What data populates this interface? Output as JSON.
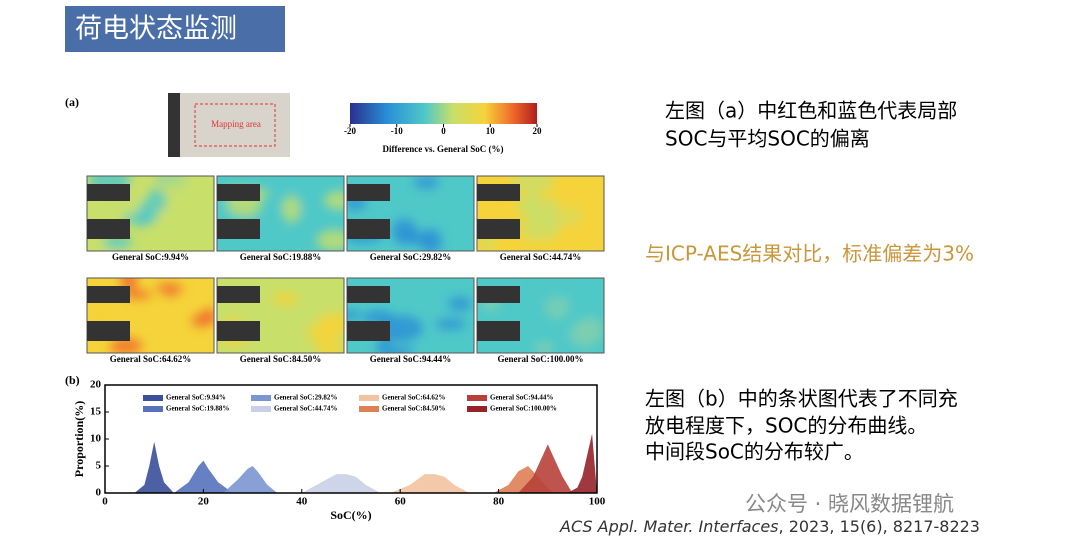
{
  "header": {
    "title": "荷电状态监测"
  },
  "figure": {
    "panel_a": {
      "label": "(a)",
      "photo_label": "Mapping area",
      "colorbar": {
        "ticks": [
          -20,
          -10,
          0,
          10,
          20
        ],
        "label": "Difference vs. General SoC (%)"
      },
      "maps": [
        {
          "label": "General SoC:9.94%"
        },
        {
          "label": "General SoC:19.88%"
        },
        {
          "label": "General SoC:29.82%"
        },
        {
          "label": "General SoC:44.74%"
        },
        {
          "label": "General SoC:64.62%"
        },
        {
          "label": "General SoC:84.50%"
        },
        {
          "label": "General SoC:94.44%"
        },
        {
          "label": "General SoC:100.00%"
        }
      ]
    },
    "panel_b": {
      "label": "(b)",
      "chart_data": {
        "type": "area",
        "x_label": "SoC(%)",
        "y_label": "Proportion(%)",
        "xlim": [
          0,
          100
        ],
        "ylim": [
          0,
          20
        ],
        "xticks": [
          0,
          20,
          40,
          60,
          80,
          100
        ],
        "yticks": [
          0,
          5,
          10,
          15,
          20
        ],
        "series": [
          {
            "name": "General SoC:9.94%",
            "color": "#3b4f9a",
            "x": [
              6,
              8,
              9,
              10,
              11,
              12,
              14
            ],
            "values": [
              0,
              1.5,
              5,
              9.5,
              5,
              2,
              0
            ]
          },
          {
            "name": "General SoC:19.88%",
            "color": "#5672bd",
            "x": [
              14,
              17,
              19,
              20,
              21,
              23,
              26
            ],
            "values": [
              0,
              2,
              5,
              6,
              4.5,
              2,
              0
            ]
          },
          {
            "name": "General SoC:29.82%",
            "color": "#7b96d1",
            "x": [
              24,
              27,
              29,
              30,
              31,
              33,
              35
            ],
            "values": [
              0,
              2.5,
              4.5,
              5,
              4,
              1.5,
              0
            ]
          },
          {
            "name": "General SoC:44.74%",
            "color": "#c9d0e6",
            "x": [
              40,
              44,
              47,
              49,
              51,
              53,
              56
            ],
            "values": [
              0,
              2,
              3.5,
              3.5,
              3,
              1.5,
              0
            ]
          },
          {
            "name": "General SoC:64.62%",
            "color": "#f2c3a0",
            "x": [
              58,
              62,
              65,
              67,
              69,
              71,
              74
            ],
            "values": [
              0,
              1.5,
              3.5,
              3.5,
              3,
              1.5,
              0
            ]
          },
          {
            "name": "General SoC:84.50%",
            "color": "#de8055",
            "x": [
              79,
              82,
              84,
              86,
              87,
              89,
              91
            ],
            "values": [
              0,
              1.5,
              4,
              5,
              4,
              2,
              0
            ]
          },
          {
            "name": "General SoC:94.44%",
            "color": "#b7413a",
            "x": [
              84,
              87,
              89,
              90,
              91,
              93,
              95
            ],
            "values": [
              0,
              3,
              7,
              9,
              7,
              3,
              0
            ]
          },
          {
            "name": "General SoC:100.00%",
            "color": "#96232a",
            "x": [
              94,
              96,
              97,
              98,
              99,
              100
            ],
            "values": [
              0,
              1,
              3,
              7,
              11,
              0
            ]
          }
        ]
      }
    }
  },
  "notes": [
    {
      "lines": [
        "左图（a）中红色和蓝色代表局部",
        "SOC与平均SOC的偏离"
      ]
    },
    {
      "lines": [
        "与ICP-AES结果对比，标准偏差为3%"
      ]
    },
    {
      "lines": [
        "左图（b）中的条状图代表了不同充",
        "放电程度下，SOC的分布曲线。",
        "中间段SoC的分布较广。"
      ]
    }
  ],
  "watermark": "公众号 · 晓风数据锂航",
  "citation": {
    "journal": "ACS Appl. Mater. Interfaces",
    "details": ", 2023, 15(6), 8217-8223"
  }
}
